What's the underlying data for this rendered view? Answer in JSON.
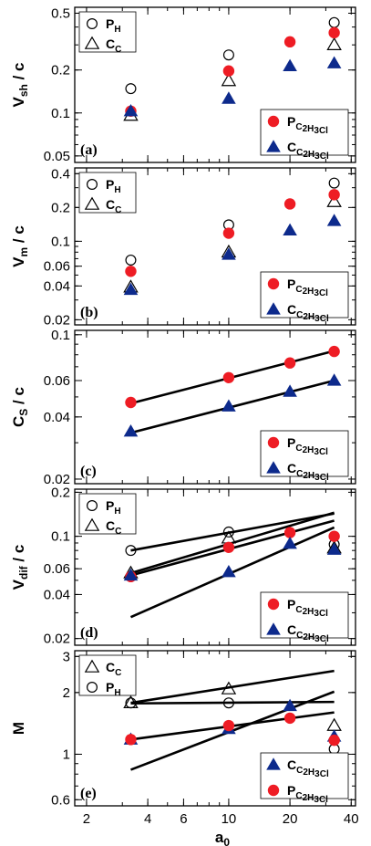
{
  "chart_data": [
    {
      "type": "scatter",
      "panel_label": "(a)",
      "ylabel": "V_sh / c",
      "yscale": "log",
      "ylim": [
        0.045,
        0.55
      ],
      "yticks": [
        0.05,
        0.1,
        0.2,
        0.5
      ],
      "yticklabels": [
        "0.05",
        "0.1",
        "0.2",
        "0.5"
      ],
      "series": [
        {
          "name": "P_H",
          "marker": "circle-open",
          "color": "#000000",
          "x": [
            3.3,
            10,
            33
          ],
          "y": [
            0.148,
            0.255,
            0.43
          ]
        },
        {
          "name": "C_C",
          "marker": "triangle-open",
          "color": "#000000",
          "x": [
            3.3,
            10,
            33
          ],
          "y": [
            0.096,
            0.168,
            0.3
          ]
        },
        {
          "name": "P_C2H3Cl",
          "marker": "circle-filled",
          "color": "#ee1c24",
          "x": [
            3.3,
            10,
            20,
            33
          ],
          "y": [
            0.103,
            0.197,
            0.315,
            0.365
          ]
        },
        {
          "name": "C_C2H3Cl",
          "marker": "triangle-filled",
          "color": "#0d2a8c",
          "x": [
            3.3,
            10,
            20,
            33
          ],
          "y": [
            0.103,
            0.126,
            0.213,
            0.223
          ]
        }
      ],
      "fits": [],
      "legends": [
        {
          "position": "top-left",
          "entries": [
            {
              "marker": "circle-open",
              "text": "P",
              "sub": "H"
            },
            {
              "marker": "triangle-open",
              "text": "C",
              "sub": "C"
            }
          ]
        },
        {
          "position": "bottom-right",
          "entries": [
            {
              "marker": "circle-filled",
              "text": "P",
              "sub": "C2H3Cl"
            },
            {
              "marker": "triangle-filled",
              "text": "C",
              "sub": "C2H3Cl"
            }
          ]
        }
      ]
    },
    {
      "type": "scatter",
      "panel_label": "(b)",
      "ylabel": "V_m / c",
      "yscale": "log",
      "ylim": [
        0.018,
        0.45
      ],
      "yticks": [
        0.02,
        0.04,
        0.06,
        0.1,
        0.2,
        0.4
      ],
      "yticklabels": [
        "0.02",
        "0.04",
        "0.06",
        "0.1",
        "0.2",
        "0.4"
      ],
      "series": [
        {
          "name": "P_H",
          "marker": "circle-open",
          "color": "#000000",
          "x": [
            3.3,
            10,
            33
          ],
          "y": [
            0.068,
            0.14,
            0.33
          ]
        },
        {
          "name": "C_C",
          "marker": "triangle-open",
          "color": "#000000",
          "x": [
            3.3,
            10,
            33
          ],
          "y": [
            0.039,
            0.08,
            0.225
          ]
        },
        {
          "name": "P_C2H3Cl",
          "marker": "circle-filled",
          "color": "#ee1c24",
          "x": [
            3.3,
            10,
            20,
            33
          ],
          "y": [
            0.054,
            0.118,
            0.215,
            0.26
          ]
        },
        {
          "name": "C_C2H3Cl",
          "marker": "triangle-filled",
          "color": "#0d2a8c",
          "x": [
            3.3,
            10,
            20,
            33
          ],
          "y": [
            0.037,
            0.076,
            0.125,
            0.152
          ]
        }
      ],
      "fits": [],
      "legends": [
        {
          "position": "top-left",
          "entries": [
            {
              "marker": "circle-open",
              "text": "P",
              "sub": "H"
            },
            {
              "marker": "triangle-open",
              "text": "C",
              "sub": "C"
            }
          ]
        },
        {
          "position": "bottom-right",
          "entries": [
            {
              "marker": "circle-filled",
              "text": "P",
              "sub": "C2H3Cl"
            },
            {
              "marker": "triangle-filled",
              "text": "C",
              "sub": "C2H3Cl"
            }
          ]
        }
      ]
    },
    {
      "type": "scatter",
      "panel_label": "(c)",
      "ylabel": "C_S / c",
      "yscale": "log",
      "ylim": [
        0.019,
        0.105
      ],
      "yticks": [
        0.02,
        0.04,
        0.06,
        0.1
      ],
      "yticklabels": [
        "0.02",
        "0.04",
        "0.06",
        "0.1"
      ],
      "series": [
        {
          "name": "P_C2H3Cl",
          "marker": "circle-filled",
          "color": "#ee1c24",
          "x": [
            3.3,
            10,
            20,
            33
          ],
          "y": [
            0.047,
            0.062,
            0.073,
            0.083
          ]
        },
        {
          "name": "C_C2H3Cl",
          "marker": "triangle-filled",
          "color": "#0d2a8c",
          "x": [
            3.3,
            10,
            20,
            33
          ],
          "y": [
            0.034,
            0.045,
            0.053,
            0.06
          ]
        }
      ],
      "fits": [
        {
          "x": [
            3.3,
            33
          ],
          "y": [
            0.0465,
            0.0835
          ]
        },
        {
          "x": [
            3.3,
            33
          ],
          "y": [
            0.0335,
            0.06
          ]
        }
      ],
      "legends": [
        {
          "position": "bottom-right",
          "entries": [
            {
              "marker": "circle-filled",
              "text": "P",
              "sub": "C2H3Cl"
            },
            {
              "marker": "triangle-filled",
              "text": "C",
              "sub": "C2H3Cl"
            }
          ]
        }
      ]
    },
    {
      "type": "scatter",
      "panel_label": "(d)",
      "ylabel": "V_dif / c",
      "yscale": "log",
      "ylim": [
        0.018,
        0.21
      ],
      "yticks": [
        0.02,
        0.04,
        0.06,
        0.1,
        0.2
      ],
      "yticklabels": [
        "0.02",
        "0.04",
        "0.06",
        "0.1",
        "0.2"
      ],
      "series": [
        {
          "name": "P_H",
          "marker": "circle-open",
          "color": "#000000",
          "x": [
            3.3,
            10,
            33
          ],
          "y": [
            0.08,
            0.107,
            0.088
          ]
        },
        {
          "name": "C_C",
          "marker": "triangle-open",
          "color": "#000000",
          "x": [
            3.3,
            10,
            33
          ],
          "y": [
            0.056,
            0.097,
            0.083
          ]
        },
        {
          "name": "P_C2H3Cl",
          "marker": "circle-filled",
          "color": "#ee1c24",
          "x": [
            3.3,
            10,
            20,
            33
          ],
          "y": [
            0.053,
            0.084,
            0.106,
            0.1
          ]
        },
        {
          "name": "C_C2H3Cl",
          "marker": "triangle-filled",
          "color": "#0d2a8c",
          "x": [
            3.3,
            10,
            20,
            33
          ],
          "y": [
            0.054,
            0.057,
            0.089,
            0.081
          ]
        }
      ],
      "fits": [
        {
          "x": [
            3.3,
            33
          ],
          "y": [
            0.08,
            0.143
          ]
        },
        {
          "x": [
            3.3,
            33
          ],
          "y": [
            0.056,
            0.145
          ]
        },
        {
          "x": [
            3.3,
            33
          ],
          "y": [
            0.054,
            0.128
          ]
        },
        {
          "x": [
            3.3,
            33
          ],
          "y": [
            0.028,
            0.115
          ]
        }
      ],
      "legends": [
        {
          "position": "top-left",
          "entries": [
            {
              "marker": "circle-open",
              "text": "P",
              "sub": "H"
            },
            {
              "marker": "triangle-open",
              "text": "C",
              "sub": "C"
            }
          ]
        },
        {
          "position": "bottom-right",
          "entries": [
            {
              "marker": "circle-filled",
              "text": "P",
              "sub": "C2H3Cl"
            },
            {
              "marker": "triangle-filled",
              "text": "C",
              "sub": "C2H3Cl"
            }
          ]
        }
      ]
    },
    {
      "type": "scatter",
      "panel_label": "(e)",
      "ylabel": "M",
      "yscale": "log",
      "ylim": [
        0.56,
        3.2
      ],
      "yticks": [
        0.6,
        1,
        2,
        3
      ],
      "yticklabels": [
        "0.6",
        "1",
        "2",
        "3"
      ],
      "series": [
        {
          "name": "C_C",
          "marker": "triangle-open",
          "color": "#000000",
          "x": [
            3.3,
            10,
            33
          ],
          "y": [
            1.78,
            2.08,
            1.38
          ]
        },
        {
          "name": "P_H",
          "marker": "circle-open",
          "color": "#000000",
          "x": [
            3.3,
            10,
            33
          ],
          "y": [
            1.78,
            1.78,
            1.06
          ]
        },
        {
          "name": "C_C2H3Cl",
          "marker": "triangle-filled",
          "color": "#0d2a8c",
          "x": [
            3.3,
            10,
            20,
            33
          ],
          "y": [
            1.18,
            1.33,
            1.72,
            1.22
          ]
        },
        {
          "name": "P_C2H3Cl",
          "marker": "circle-filled",
          "color": "#ee1c24",
          "x": [
            3.3,
            10,
            20,
            33
          ],
          "y": [
            1.18,
            1.38,
            1.5,
            1.17
          ]
        }
      ],
      "fits": [
        {
          "x": [
            3.3,
            33
          ],
          "y": [
            1.78,
            2.55
          ]
        },
        {
          "x": [
            3.3,
            33
          ],
          "y": [
            1.77,
            1.8
          ]
        },
        {
          "x": [
            3.3,
            33
          ],
          "y": [
            1.18,
            1.6
          ]
        },
        {
          "x": [
            3.3,
            33
          ],
          "y": [
            0.84,
            2.02
          ]
        }
      ],
      "legends": [
        {
          "position": "top-left",
          "entries": [
            {
              "marker": "triangle-open",
              "text": "C",
              "sub": "C"
            },
            {
              "marker": "circle-open",
              "text": "P",
              "sub": "H"
            }
          ]
        },
        {
          "position": "bottom-right",
          "entries": [
            {
              "marker": "triangle-filled",
              "text": "C",
              "sub": "C2H3Cl"
            },
            {
              "marker": "circle-filled",
              "text": "P",
              "sub": "C2H3Cl"
            }
          ]
        }
      ]
    }
  ],
  "x_axis": {
    "label": "a_0",
    "scale": "log",
    "xlim": [
      1.75,
      42
    ],
    "ticks": [
      2,
      4,
      6,
      10,
      20,
      40
    ],
    "ticklabels": [
      "2",
      "4",
      "6",
      "10",
      "20",
      "40"
    ]
  }
}
